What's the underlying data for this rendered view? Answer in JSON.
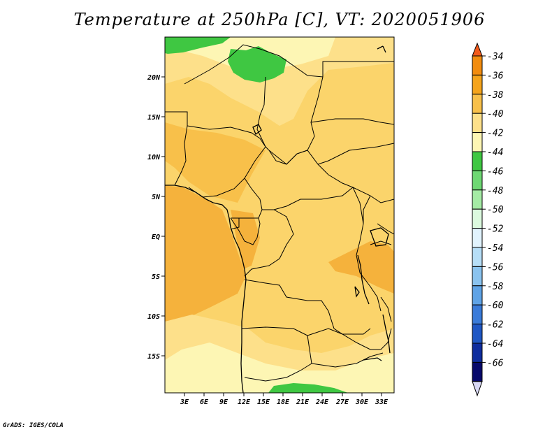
{
  "title": "Temperature at 250hPa [C], VT: 2020051906",
  "credit": "GrADS: IGES/COLA",
  "lat_labels": [
    "20N",
    "15N",
    "10N",
    "5N",
    "EQ",
    "5S",
    "10S",
    "15S"
  ],
  "lon_labels": [
    "3E",
    "6E",
    "9E",
    "12E",
    "15E",
    "18E",
    "21E",
    "24E",
    "27E",
    "30E",
    "33E"
  ],
  "colorbar": {
    "labels": [
      "-34",
      "-36",
      "-38",
      "-40",
      "-42",
      "-44",
      "-46",
      "-48",
      "-50",
      "-52",
      "-54",
      "-56",
      "-58",
      "-60",
      "-62",
      "-64",
      "-66"
    ],
    "colors": [
      "#f25a1b",
      "#f28c0f",
      "#f5a41c",
      "#f8c04a",
      "#fde08a",
      "#fdf6b4",
      "#3fc742",
      "#6ed873",
      "#a5eba5",
      "#dcfadf",
      "#e1f3fd",
      "#b6def7",
      "#8ac3ef",
      "#5fa3e6",
      "#3a7bd9",
      "#1f57c4",
      "#0f2d9e",
      "#07096b",
      "#d9d9f5"
    ],
    "top_arrow_color": "#f25a1b",
    "bottom_arrow_color": "#d9d9f5"
  },
  "field_colors": {
    "very_warm": "#f5b23c",
    "warm": "#f8c04a",
    "mid": "#fbd46b",
    "cool": "#fde08a",
    "cooler": "#fdf6b4",
    "green": "#3fc742"
  }
}
